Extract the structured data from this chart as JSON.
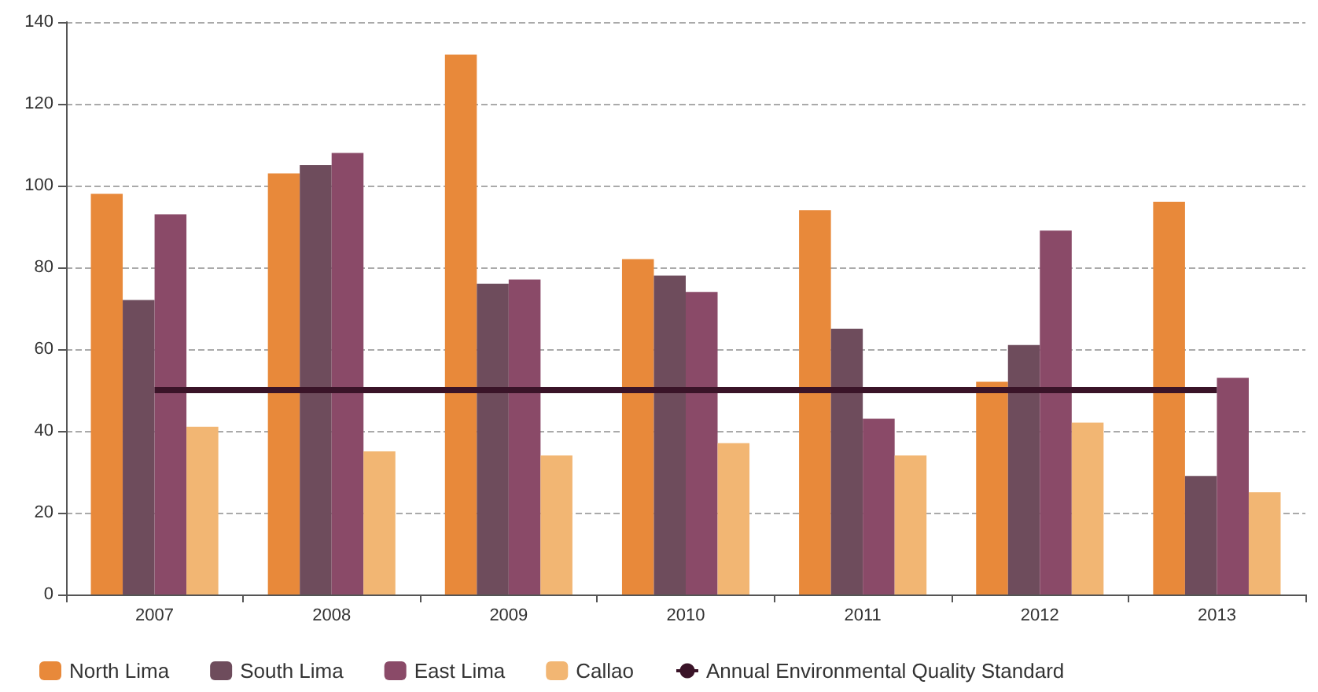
{
  "chart_data": {
    "type": "bar",
    "categories": [
      "2007",
      "2008",
      "2009",
      "2010",
      "2011",
      "2012",
      "2013"
    ],
    "series": [
      {
        "name": "North Lima",
        "color": "#e8893a",
        "values": [
          98,
          103,
          132,
          82,
          94,
          52,
          96
        ]
      },
      {
        "name": "South Lima",
        "color": "#6e4c5c",
        "values": [
          72,
          105,
          76,
          78,
          65,
          61,
          29
        ]
      },
      {
        "name": "East Lima",
        "color": "#8a4a68",
        "values": [
          93,
          108,
          77,
          74,
          43,
          89,
          53
        ]
      },
      {
        "name": "Callao",
        "color": "#f2b673",
        "values": [
          41,
          35,
          34,
          37,
          34,
          42,
          25
        ]
      },
      {
        "name": "Annual Environmental Quality Standard",
        "type": "line",
        "color": "#3a1428",
        "values": [
          50,
          50,
          50,
          50,
          50,
          50,
          50
        ]
      }
    ],
    "ylim": [
      0,
      140
    ],
    "yticks": [
      0,
      20,
      40,
      60,
      80,
      100,
      120,
      140
    ],
    "grid": "y",
    "legend": "bottom",
    "marker": "none"
  }
}
